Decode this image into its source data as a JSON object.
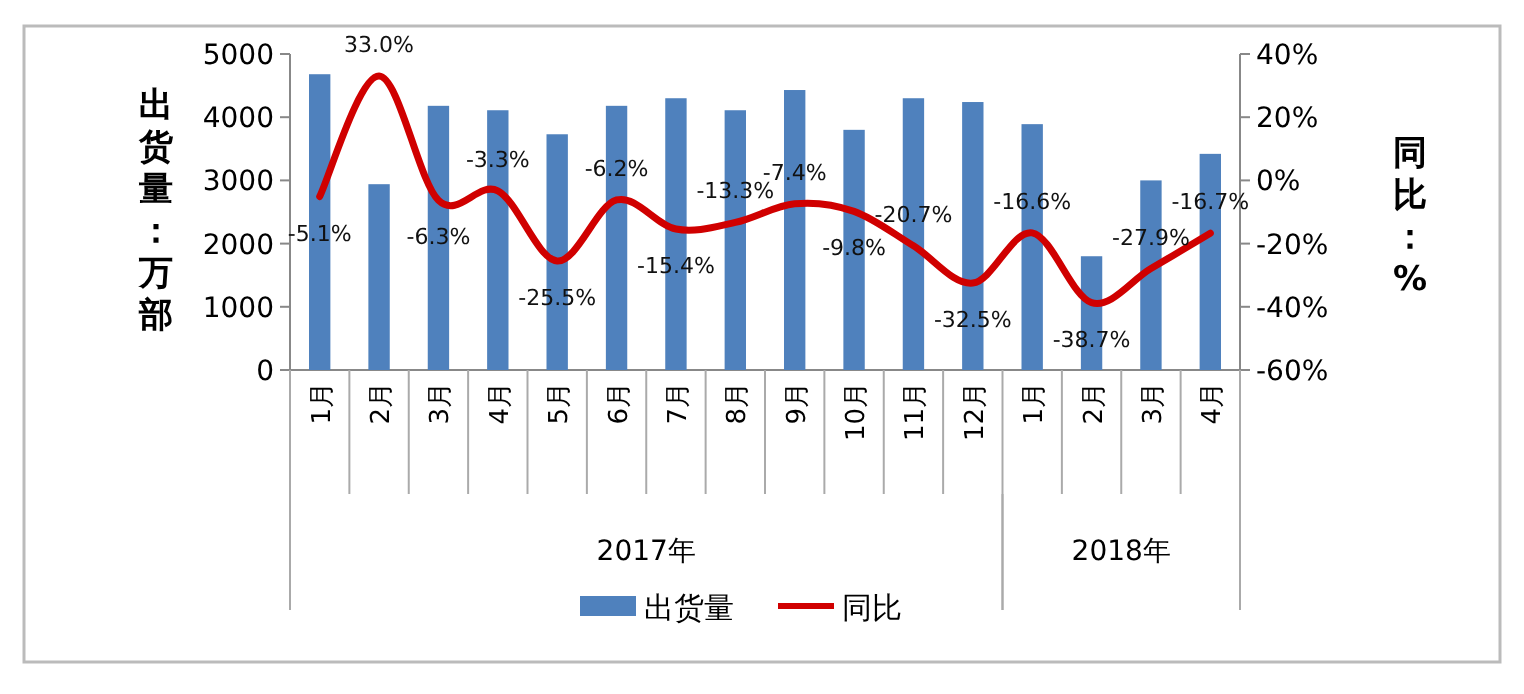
{
  "chart_data": {
    "type": "bar",
    "categories": [
      "1月",
      "2月",
      "3月",
      "4月",
      "5月",
      "6月",
      "7月",
      "8月",
      "9月",
      "10月",
      "11月",
      "12月",
      "1月",
      "2月",
      "3月",
      "4月"
    ],
    "series": [
      {
        "name": "出货量",
        "color": "#4f81bd",
        "values": [
          4680,
          2940,
          4180,
          4110,
          3730,
          4180,
          4300,
          4110,
          4430,
          3800,
          4300,
          4240,
          3890,
          1800,
          3000,
          3420
        ]
      },
      {
        "name": "同比",
        "type": "line",
        "axis": "y2",
        "color": "#d00000",
        "values": [
          -5.1,
          33.0,
          -6.3,
          -3.3,
          -25.5,
          -6.2,
          -15.4,
          -13.3,
          -7.4,
          -9.8,
          -20.7,
          -32.5,
          -16.6,
          -38.7,
          -27.9,
          -16.7
        ],
        "value_labels": [
          "-5.1%",
          "33.0%",
          "-6.3%",
          "-3.3%",
          "-25.5%",
          "-6.2%",
          "-15.4%",
          "-13.3%",
          "-7.4%",
          "-9.8%",
          "-20.7%",
          "-32.5%",
          "-16.6%",
          "-38.7%",
          "-27.9%",
          "-16.7%"
        ]
      }
    ],
    "annotations": [
      "2017年",
      "2018年"
    ],
    "ylabel": "出货量：万部",
    "y2label": "同比：%",
    "ylim": [
      0,
      5000
    ],
    "yticks": [
      0,
      1000,
      2000,
      3000,
      4000,
      5000
    ],
    "y2lim": [
      -60,
      40
    ],
    "y2ticks": [
      {
        "value": -60,
        "label": "-60%"
      },
      {
        "value": -40,
        "label": "-40%"
      },
      {
        "value": -20,
        "label": "-20%"
      },
      {
        "value": 0,
        "label": "0%"
      },
      {
        "value": 20,
        "label": "20%"
      },
      {
        "value": 40,
        "label": "40%"
      }
    ],
    "grid": false,
    "legend": "bottom"
  }
}
